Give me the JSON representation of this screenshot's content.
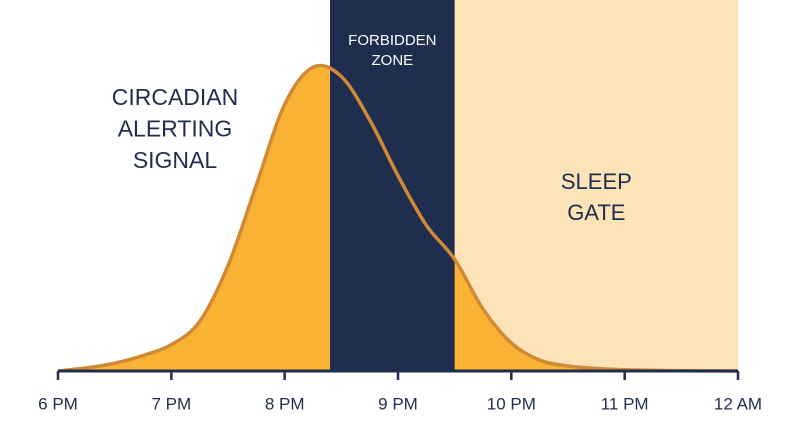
{
  "chart_data": {
    "type": "area",
    "x": [
      18,
      18.25,
      18.5,
      18.75,
      19,
      19.25,
      19.5,
      19.75,
      20,
      20.25,
      20.5,
      20.75,
      21,
      21.25,
      21.5,
      21.75,
      22,
      22.25,
      22.5,
      22.75,
      23,
      23.5,
      24
    ],
    "series": [
      {
        "color": "#f9b234",
        "line_color": "#d08a35",
        "values": [
          0,
          1,
          2.5,
          5,
          8.5,
          16,
          34,
          60,
          86,
          98,
          95,
          81,
          63,
          47,
          36,
          20,
          9,
          3.5,
          1.6,
          0.8,
          0.4,
          0.1,
          0
        ]
      }
    ],
    "xlim": [
      18,
      24
    ],
    "ylim": [
      0,
      100
    ],
    "xticks": [
      {
        "value": 18,
        "label": "6 PM"
      },
      {
        "value": 19,
        "label": "7 PM"
      },
      {
        "value": 20,
        "label": "8 PM"
      },
      {
        "value": 21,
        "label": "9 PM"
      },
      {
        "value": 22,
        "label": "10 PM"
      },
      {
        "value": 23,
        "label": "11 PM"
      },
      {
        "value": 24,
        "label": "12 AM"
      }
    ],
    "regions": [
      {
        "label_lines": [
          "FORBIDDEN",
          "ZONE"
        ],
        "start": 20.4,
        "end": 21.5,
        "color": "#1f2d4e",
        "text_color": "#ffffff"
      },
      {
        "label_lines": [
          "SLEEP",
          "GATE"
        ],
        "start": 21.5,
        "end": 24,
        "color": "#fde3b8",
        "text_color": "#1f2d4e"
      }
    ],
    "annotation_lines": [
      "CIRCADIAN",
      "ALERTING",
      "SIGNAL"
    ],
    "axis_color": "#1f2d4e"
  }
}
